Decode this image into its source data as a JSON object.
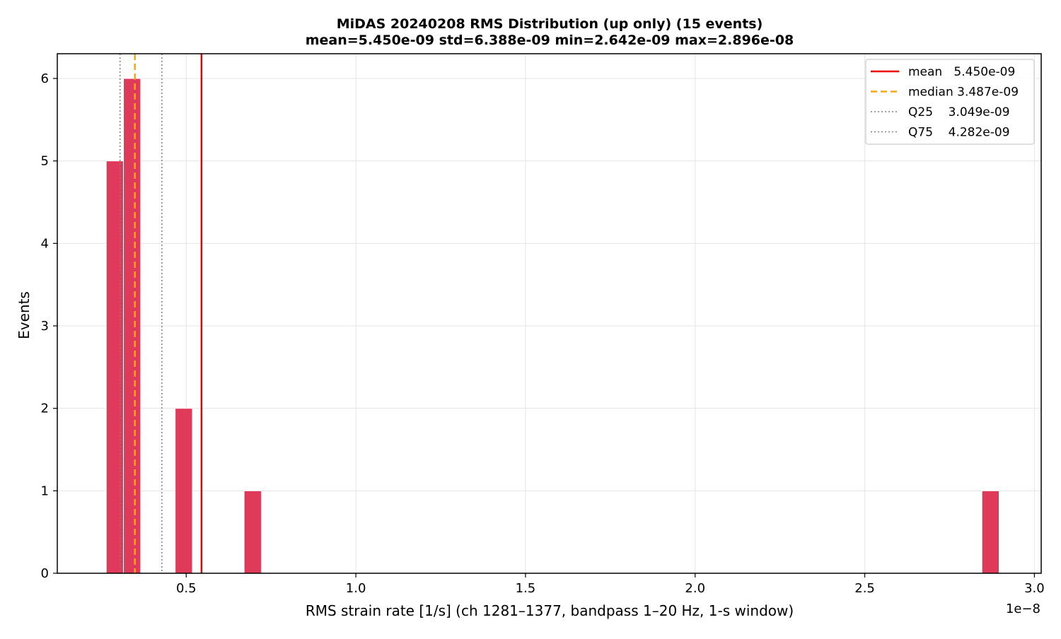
{
  "chart_data": {
    "type": "bar",
    "title": "MiDAS 20240208  RMS Distribution  (up only)  (15 events)",
    "subtitle": "mean=5.450e-09  std=6.388e-09  min=2.642e-09  max=2.896e-08",
    "xlabel": "RMS strain rate [1/s]  (ch 1281–1377, bandpass 1–20 Hz, 1-s window)",
    "ylabel": "Events",
    "x_offset_label": "1e−8",
    "xlim": [
      0.12,
      3.02
    ],
    "ylim": [
      0,
      6.3
    ],
    "bin_width": 0.0508,
    "bars": [
      {
        "x0": 0.2642,
        "count": 5
      },
      {
        "x0": 0.315,
        "count": 6
      },
      {
        "x0": 0.4674,
        "count": 2
      },
      {
        "x0": 0.6706,
        "count": 1
      },
      {
        "x0": 2.8452,
        "count": 1
      }
    ],
    "bar_color": "#e03a5a",
    "x_ticks": [
      {
        "value": 0.5,
        "label": "0.5"
      },
      {
        "value": 1.0,
        "label": "1.0"
      },
      {
        "value": 1.5,
        "label": "1.5"
      },
      {
        "value": 2.0,
        "label": "2.0"
      },
      {
        "value": 2.5,
        "label": "2.5"
      },
      {
        "value": 3.0,
        "label": "3.0"
      }
    ],
    "y_ticks": [
      {
        "value": 0,
        "label": "0"
      },
      {
        "value": 1,
        "label": "1"
      },
      {
        "value": 2,
        "label": "2"
      },
      {
        "value": 3,
        "label": "3"
      },
      {
        "value": 4,
        "label": "4"
      },
      {
        "value": 5,
        "label": "5"
      },
      {
        "value": 6,
        "label": "6"
      }
    ],
    "grid": true,
    "legend_position": "top-right",
    "reference_lines": [
      {
        "key": "mean",
        "value": 0.545,
        "color": "#ee0000",
        "style": "solid",
        "label": "mean   5.450e-09"
      },
      {
        "key": "median",
        "value": 0.3487,
        "color": "#ffa500",
        "style": "dashed",
        "label": "median 3.487e-09"
      },
      {
        "key": "q25",
        "value": 0.3049,
        "color": "#808080",
        "style": "dotted",
        "label": "Q25    3.049e-09"
      },
      {
        "key": "q75",
        "value": 0.4282,
        "color": "#808080",
        "style": "dotted",
        "label": "Q75    4.282e-09"
      }
    ]
  }
}
